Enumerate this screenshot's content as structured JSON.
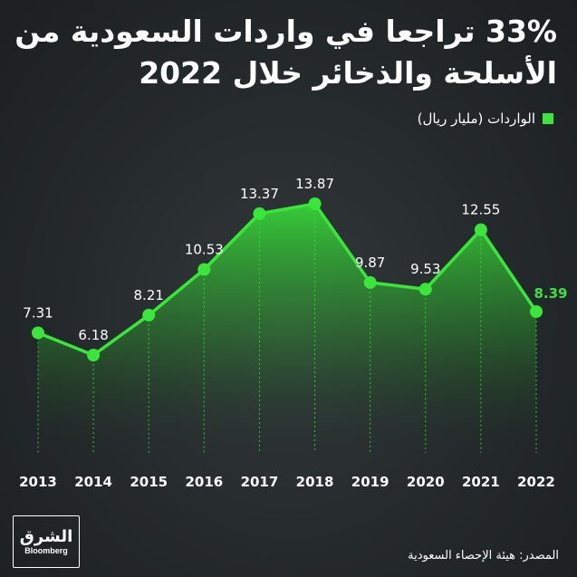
{
  "title": "33% تراجعا في واردات السعودية من الأسلحة والذخائر خلال 2022",
  "legend_label": "الواردات (مليار ريال)",
  "source": "المصدر: هيئة الإحصاء السعودية",
  "logo": {
    "arabic": "الشرق",
    "english": "Bloomberg"
  },
  "colors": {
    "line": "#39e639",
    "highlight": "#39e639",
    "text": "#ffffff",
    "background": "#24292b"
  },
  "chart_data": {
    "type": "area",
    "categories": [
      "2013",
      "2014",
      "2015",
      "2016",
      "2017",
      "2018",
      "2019",
      "2020",
      "2021",
      "2022"
    ],
    "values": [
      7.31,
      6.18,
      8.21,
      10.53,
      13.37,
      13.87,
      9.87,
      9.53,
      12.55,
      8.39
    ],
    "labels": [
      "7.31",
      "6.18",
      "8.21",
      "10.53",
      "13.37",
      "13.87",
      "9.87",
      "9.53",
      "12.55",
      "8.39"
    ],
    "highlight_last": true,
    "ylim": [
      0,
      16
    ],
    "grid": false
  }
}
